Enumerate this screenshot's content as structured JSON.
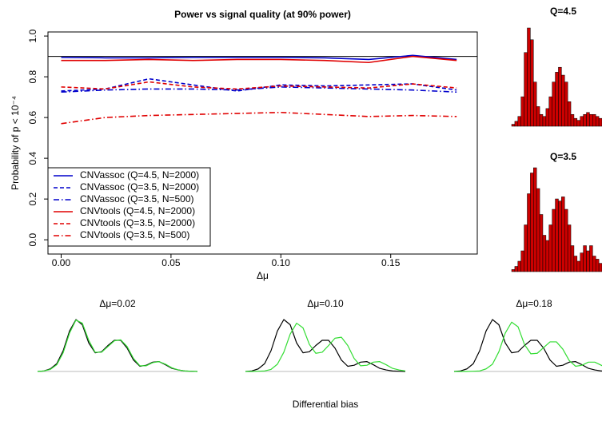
{
  "chart_data": [
    {
      "type": "line",
      "title": "Power vs signal quality (at 90% power)",
      "xlabel": "Δμ",
      "ylabel": "Probability of p < 10⁻⁴",
      "x": [
        0,
        0.02,
        0.04,
        0.06,
        0.08,
        0.1,
        0.12,
        0.14,
        0.16,
        0.18
      ],
      "xlim": [
        -0.006,
        0.1894
      ],
      "ylim": [
        -0.07,
        1.02
      ],
      "xticks": [
        {
          "value": 0,
          "label": "0.00"
        },
        {
          "value": 0.05,
          "label": "0.05"
        },
        {
          "value": 0.1,
          "label": "0.10"
        },
        {
          "value": 0.15,
          "label": "0.15"
        }
      ],
      "yticks": [
        {
          "value": 0,
          "label": "0.0"
        },
        {
          "value": 0.2,
          "label": "0.2"
        },
        {
          "value": 0.4,
          "label": "0.4"
        },
        {
          "value": 0.6,
          "label": "0.6"
        },
        {
          "value": 0.8,
          "label": "0.8"
        },
        {
          "value": 1,
          "label": "1.0"
        }
      ],
      "hline": 0.9,
      "legend": "bottomleft",
      "series": [
        {
          "name": "CNVassoc (Q=4.5, N=2000)",
          "color": "#0000cc",
          "dash": "solid",
          "values": [
            0.895,
            0.893,
            0.893,
            0.895,
            0.895,
            0.895,
            0.893,
            0.885,
            0.905,
            0.885
          ]
        },
        {
          "name": "CNVassoc (Q=3.5, N=2000)",
          "color": "#0000cc",
          "dash": "dashed",
          "values": [
            0.73,
            0.74,
            0.79,
            0.76,
            0.73,
            0.76,
            0.755,
            0.76,
            0.765,
            0.735
          ]
        },
        {
          "name": "CNVassoc (Q=3.5, N=500)",
          "color": "#0000cc",
          "dash": "dotdash",
          "values": [
            0.725,
            0.735,
            0.74,
            0.74,
            0.735,
            0.75,
            0.745,
            0.74,
            0.735,
            0.725
          ]
        },
        {
          "name": "CNVtools (Q=4.5, N=2000)",
          "color": "#e00000",
          "dash": "solid",
          "values": [
            0.88,
            0.88,
            0.885,
            0.88,
            0.885,
            0.885,
            0.88,
            0.87,
            0.9,
            0.88
          ]
        },
        {
          "name": "CNVtools (Q=3.5, N=2000)",
          "color": "#e00000",
          "dash": "dashed",
          "values": [
            0.75,
            0.74,
            0.775,
            0.75,
            0.74,
            0.755,
            0.75,
            0.745,
            0.765,
            0.745
          ]
        },
        {
          "name": "CNVtools (Q=3.5, N=500)",
          "color": "#e00000",
          "dash": "dotdash",
          "values": [
            0.57,
            0.6,
            0.61,
            0.615,
            0.62,
            0.625,
            0.615,
            0.605,
            0.61,
            0.605
          ]
        }
      ]
    },
    {
      "type": "bar",
      "title": "Q=4.5",
      "color": "#cc0000",
      "values": [
        0.02,
        0.05,
        0.1,
        0.3,
        0.75,
        1.0,
        0.88,
        0.45,
        0.2,
        0.12,
        0.1,
        0.18,
        0.3,
        0.45,
        0.55,
        0.6,
        0.52,
        0.45,
        0.25,
        0.12,
        0.08,
        0.06,
        0.1,
        0.12,
        0.14,
        0.12,
        0.12,
        0.1,
        0.08
      ]
    },
    {
      "type": "bar",
      "title": "Q=3.5",
      "color": "#cc0000",
      "values": [
        0.02,
        0.05,
        0.1,
        0.2,
        0.45,
        0.75,
        0.95,
        1.0,
        0.8,
        0.55,
        0.35,
        0.3,
        0.45,
        0.6,
        0.7,
        0.68,
        0.72,
        0.6,
        0.45,
        0.25,
        0.15,
        0.1,
        0.18,
        0.25,
        0.2,
        0.25,
        0.15,
        0.12,
        0.08
      ]
    },
    {
      "type": "density",
      "title": "Δμ=0.02",
      "x": [
        0,
        0.04,
        0.08,
        0.12,
        0.16,
        0.2,
        0.24,
        0.28,
        0.32,
        0.36,
        0.4,
        0.44,
        0.48,
        0.52,
        0.56,
        0.6,
        0.64,
        0.68,
        0.72,
        0.76,
        0.8,
        0.84,
        0.88,
        0.92,
        0.96,
        1
      ],
      "series": [
        {
          "color": "#000000",
          "values": [
            0,
            0.01,
            0.05,
            0.15,
            0.4,
            0.78,
            1.0,
            0.9,
            0.55,
            0.36,
            0.38,
            0.5,
            0.6,
            0.6,
            0.45,
            0.22,
            0.1,
            0.12,
            0.18,
            0.19,
            0.13,
            0.06,
            0.03,
            0.01,
            0.005,
            0
          ]
        },
        {
          "color": "#33dd33",
          "values": [
            0,
            0.01,
            0.04,
            0.13,
            0.36,
            0.74,
            0.99,
            0.93,
            0.6,
            0.37,
            0.37,
            0.48,
            0.59,
            0.61,
            0.48,
            0.25,
            0.11,
            0.11,
            0.17,
            0.19,
            0.14,
            0.07,
            0.03,
            0.01,
            0.005,
            0
          ]
        }
      ]
    },
    {
      "type": "density",
      "title": "Δμ=0.10",
      "xlabel": "Differential bias",
      "x": [
        0,
        0.04,
        0.08,
        0.12,
        0.16,
        0.2,
        0.24,
        0.28,
        0.32,
        0.36,
        0.4,
        0.44,
        0.48,
        0.52,
        0.56,
        0.6,
        0.64,
        0.68,
        0.72,
        0.76,
        0.8,
        0.84,
        0.88,
        0.92,
        0.96,
        1
      ],
      "series": [
        {
          "color": "#000000",
          "values": [
            0,
            0.01,
            0.05,
            0.15,
            0.4,
            0.78,
            1.0,
            0.9,
            0.55,
            0.36,
            0.38,
            0.5,
            0.6,
            0.6,
            0.45,
            0.22,
            0.1,
            0.12,
            0.18,
            0.19,
            0.13,
            0.06,
            0.03,
            0.01,
            0.005,
            0
          ]
        },
        {
          "color": "#33dd33",
          "values": [
            0,
            0,
            0.005,
            0.01,
            0.04,
            0.14,
            0.37,
            0.72,
            0.93,
            0.84,
            0.52,
            0.35,
            0.37,
            0.5,
            0.64,
            0.66,
            0.5,
            0.25,
            0.11,
            0.12,
            0.18,
            0.19,
            0.13,
            0.06,
            0.03,
            0.01
          ]
        }
      ]
    },
    {
      "type": "density",
      "title": "Δμ=0.18",
      "x": [
        0,
        0.04,
        0.08,
        0.12,
        0.16,
        0.2,
        0.24,
        0.28,
        0.32,
        0.36,
        0.4,
        0.44,
        0.48,
        0.52,
        0.56,
        0.6,
        0.64,
        0.68,
        0.72,
        0.76,
        0.8,
        0.84,
        0.88,
        0.92,
        0.96,
        1
      ],
      "series": [
        {
          "color": "#000000",
          "values": [
            0,
            0.01,
            0.05,
            0.15,
            0.4,
            0.78,
            1.0,
            0.9,
            0.55,
            0.36,
            0.38,
            0.5,
            0.6,
            0.6,
            0.45,
            0.22,
            0.1,
            0.12,
            0.18,
            0.19,
            0.13,
            0.06,
            0.03,
            0.01,
            0.005,
            0
          ]
        },
        {
          "color": "#33dd33",
          "values": [
            0,
            0,
            0,
            0.005,
            0.01,
            0.05,
            0.14,
            0.38,
            0.74,
            0.95,
            0.86,
            0.52,
            0.34,
            0.35,
            0.46,
            0.57,
            0.57,
            0.43,
            0.21,
            0.1,
            0.12,
            0.18,
            0.18,
            0.12,
            0.06,
            0.03
          ]
        }
      ]
    }
  ]
}
